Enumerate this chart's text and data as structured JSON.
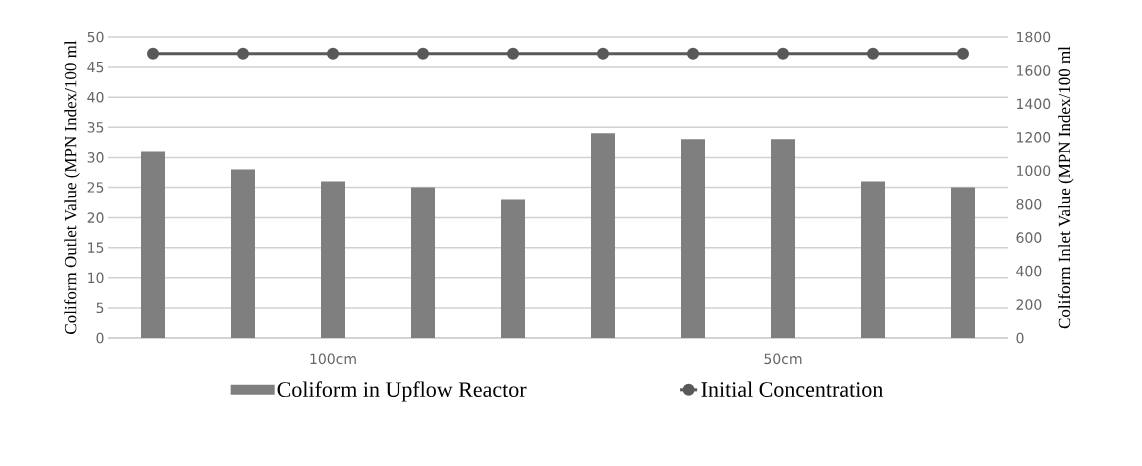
{
  "chart_data": {
    "type": "bar",
    "ylabel": "Coliform Outlet Value (MPN Index/100 ml",
    "y2label": "Coliform Inlet Value (MPN Index/100 ml",
    "categories": [
      null,
      null,
      "100cm",
      null,
      null,
      null,
      null,
      "50cm",
      null,
      null
    ],
    "series": [
      {
        "name": "Coliform in Upflow Reactor",
        "color": "#7f7f7f",
        "values": [
          31,
          28,
          26,
          25,
          23,
          34,
          33,
          33,
          26,
          25
        ]
      },
      {
        "name": "Initial Concentration",
        "type": "line",
        "axis": "y2",
        "color": "#595959",
        "marker": "circle",
        "values": [
          1700,
          1700,
          1700,
          1700,
          1700,
          1700,
          1700,
          1700,
          1700,
          1700
        ]
      }
    ],
    "ylim": [
      0,
      50
    ],
    "yticks": [
      0,
      5,
      10,
      15,
      20,
      25,
      30,
      35,
      40,
      45,
      50
    ],
    "y2lim": [
      0,
      1800
    ],
    "y2ticks": [
      0,
      200,
      400,
      600,
      800,
      1000,
      1200,
      1400,
      1600,
      1800
    ],
    "grid": "y",
    "legend": "bottom"
  }
}
